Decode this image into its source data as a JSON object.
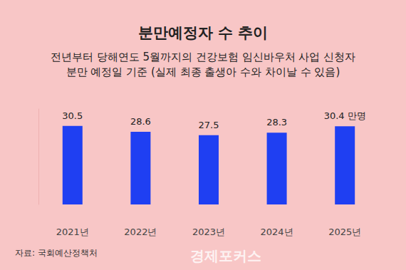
{
  "chart_data": {
    "type": "bar",
    "title": "분만예정자 수 추이",
    "subtitle": "전년부터 당해연도 5월까지의 건강보험 임신바우처 사업 신청자\n분만 예정일 기준 (실제 최종 출생아 수와 차이날 수 있음)",
    "source": "자료: 국회예산정책처",
    "watermark": "경제포커스",
    "categories": [
      "2021년",
      "2022년",
      "2023년",
      "2024년",
      "2025년"
    ],
    "values": [
      30.5,
      28.6,
      27.5,
      28.3,
      30.4
    ],
    "value_labels": [
      "30.5",
      "28.6",
      "27.5",
      "28.3",
      "30.4 만명"
    ],
    "color": "#1f3ff2",
    "ylim": [
      5,
      36
    ],
    "yticks": [],
    "grid": false,
    "data_labels": true,
    "tick_labels": "x"
  }
}
